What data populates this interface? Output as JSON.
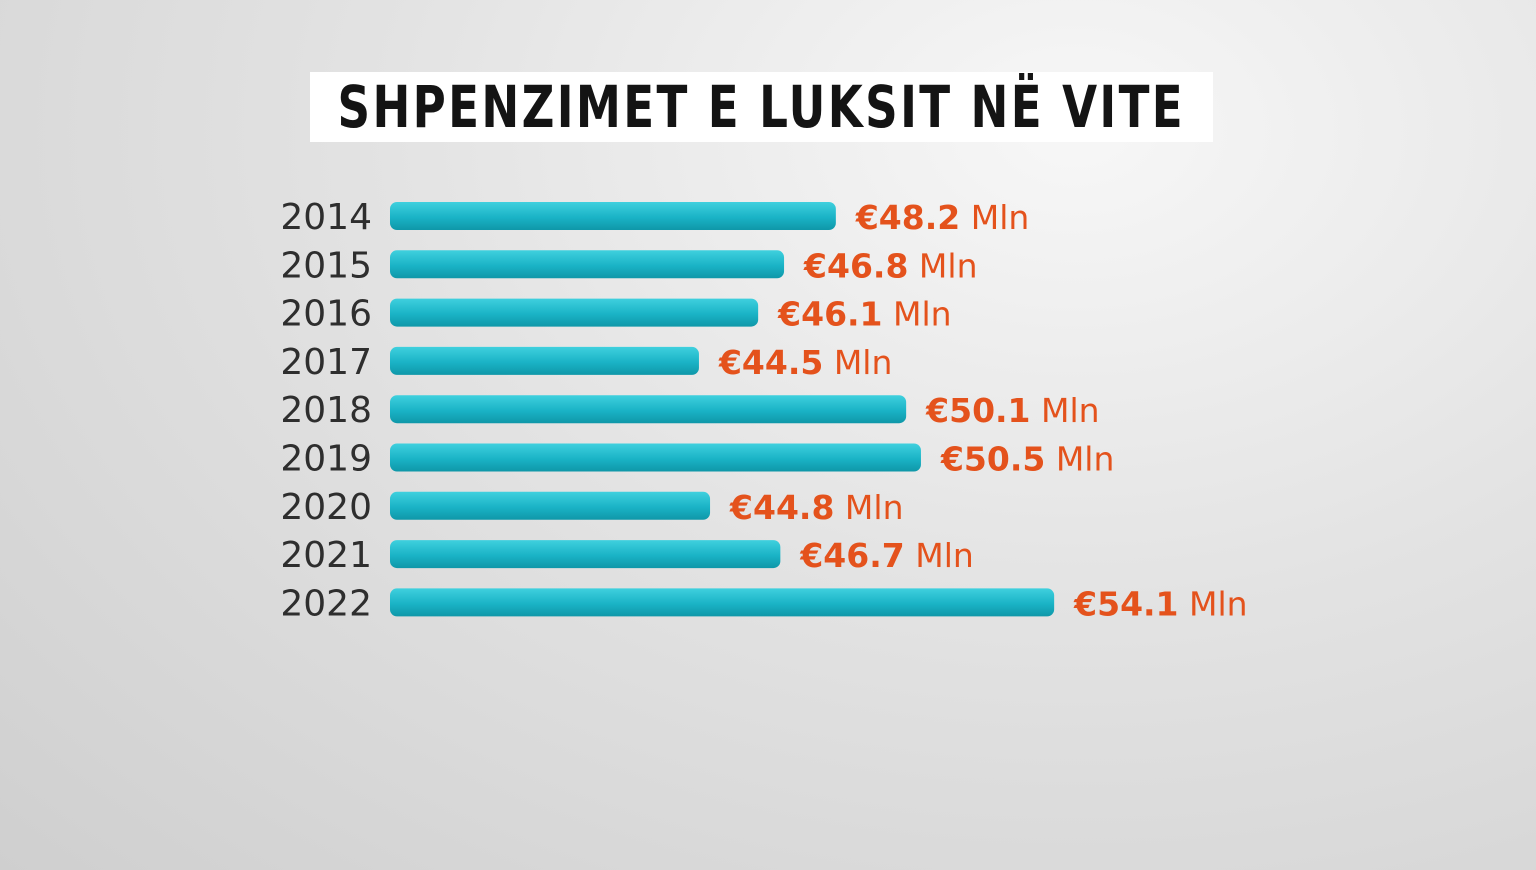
{
  "chart_data": {
    "type": "bar",
    "orientation": "horizontal",
    "title": "SHPENZIMET E LUKSIT NË VITE",
    "categories": [
      "2014",
      "2015",
      "2016",
      "2017",
      "2018",
      "2019",
      "2020",
      "2021",
      "2022"
    ],
    "values": [
      48.2,
      46.8,
      46.1,
      44.5,
      50.1,
      50.5,
      44.8,
      46.7,
      54.1
    ],
    "value_labels": [
      "€48.2",
      "€46.8",
      "€46.1",
      "€44.5",
      "€50.1",
      "€50.5",
      "€44.8",
      "€46.7",
      "€54.1"
    ],
    "unit": "Mln",
    "bar_color": "#1ab3c6",
    "label_color": "#e4521c",
    "grid": false,
    "legend": "none"
  }
}
